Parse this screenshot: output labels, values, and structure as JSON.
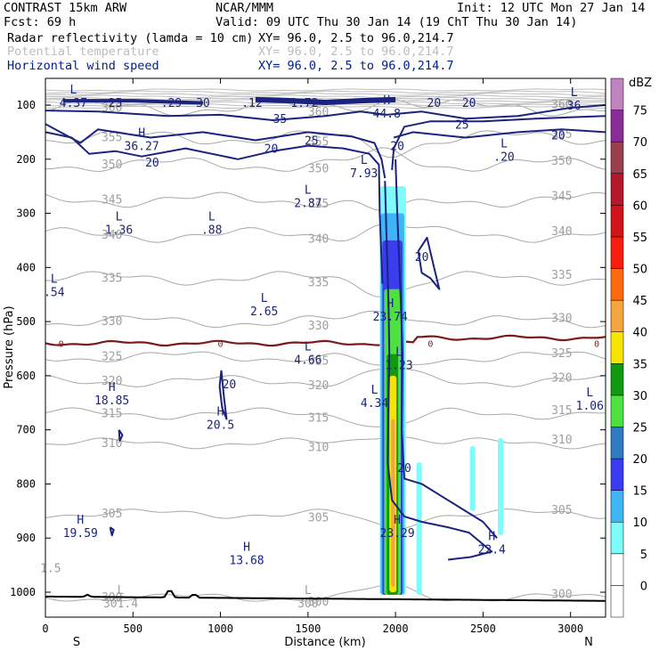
{
  "header": {
    "left_title": "CONTRAST 15km ARW",
    "center_title": "NCAR/MMM",
    "init": "Init: 12 UTC Mon 27 Jan 14",
    "fcst": "Fcst:   69 h",
    "valid": "Valid: 09 UTC Thu 30 Jan 14 (19 ChT Thu 30 Jan 14)",
    "fields": [
      {
        "name": "Radar reflectivity (lamda = 10 cm)",
        "xy": "XY=  96.0,  2.5 to  96.0,214.7",
        "color": "#000000"
      },
      {
        "name": "Potential temperature",
        "xy": "XY=  96.0,  2.5 to  96.0,214.7",
        "color": "#bdbdbd"
      },
      {
        "name": "Horizontal wind speed",
        "xy": "XY=  96.0,  2.5 to  96.0,214.7",
        "color": "#00208a"
      }
    ]
  },
  "chart_data": {
    "type": "cross-section contour",
    "xlabel": "Distance (km)",
    "ylabel": "Pressure (hPa)",
    "xlim": [
      0,
      3200
    ],
    "ylim": [
      1050,
      70
    ],
    "xticks": [
      0,
      500,
      1000,
      1500,
      2000,
      2500,
      3000
    ],
    "yticks": [
      100,
      200,
      300,
      400,
      500,
      600,
      700,
      800,
      900,
      1000
    ],
    "x_end_labels": {
      "left": "S",
      "right": "N"
    },
    "colorbar": {
      "unit": "dBZ",
      "levels": [
        0,
        5,
        10,
        15,
        20,
        25,
        30,
        35,
        40,
        45,
        50,
        55,
        60,
        65,
        70,
        75
      ],
      "colors": [
        "#ffffff",
        "#7efcfb",
        "#3fb5f5",
        "#3b3bf0",
        "#2e7bc1",
        "#4ee03e",
        "#109a10",
        "#f7e400",
        "#f4a53f",
        "#fe6a0f",
        "#f81e0e",
        "#d1131a",
        "#b4162a",
        "#9a3f4e",
        "#8b2a99",
        "#c083c0"
      ]
    },
    "isentropes_K": [
      {
        "value": "300",
        "p": 1010
      },
      {
        "value": "305",
        "p": 855
      },
      {
        "value": "310",
        "p": 725
      },
      {
        "value": "315",
        "p": 670
      },
      {
        "value": "320",
        "p": 610
      },
      {
        "value": "325",
        "p": 565
      },
      {
        "value": "330",
        "p": 500
      },
      {
        "value": "335",
        "p": 420
      },
      {
        "value": "340",
        "p": 340
      },
      {
        "value": "345",
        "p": 275
      },
      {
        "value": "350",
        "p": 210
      },
      {
        "value": "355",
        "p": 160
      },
      {
        "value": "360",
        "p": 105
      }
    ],
    "freezing_level": {
      "label": "0",
      "p": 540
    },
    "extrema_labels": [
      {
        "kind": "H",
        "value": "36.27",
        "x": 550,
        "p": 165,
        "color": "blue"
      },
      {
        "kind": "L",
        "value": "1.36",
        "x": 420,
        "p": 320,
        "color": "blue"
      },
      {
        "kind": "L",
        "value": ".88",
        "x": 950,
        "p": 320,
        "color": "blue"
      },
      {
        "kind": "L",
        "value": "2.87",
        "x": 1500,
        "p": 270,
        "color": "blue"
      },
      {
        "kind": "L",
        "value": "7.93",
        "x": 1820,
        "p": 215,
        "color": "blue"
      },
      {
        "kind": "L",
        "value": "2.65",
        "x": 1250,
        "p": 470,
        "color": "blue"
      },
      {
        "kind": "L",
        "value": "4.66",
        "x": 1500,
        "p": 560,
        "color": "blue"
      },
      {
        "kind": "H",
        "value": "23.74",
        "x": 1970,
        "p": 480,
        "color": "blue"
      },
      {
        "kind": "L",
        "value": "1.23",
        "x": 2020,
        "p": 570,
        "color": "blue"
      },
      {
        "kind": "H",
        "value": "18.85",
        "x": 380,
        "p": 635,
        "color": "blue"
      },
      {
        "kind": "H",
        "value": "20.5",
        "x": 1000,
        "p": 680,
        "color": "blue"
      },
      {
        "kind": "L",
        "value": "4.34",
        "x": 1880,
        "p": 640,
        "color": "blue"
      },
      {
        "kind": "H",
        "value": "19.59",
        "x": 200,
        "p": 880,
        "color": "blue"
      },
      {
        "kind": "H",
        "value": "13.68",
        "x": 1150,
        "p": 930,
        "color": "blue"
      },
      {
        "kind": "H",
        "value": "23.29",
        "x": 2010,
        "p": 880,
        "color": "blue"
      },
      {
        "kind": "H",
        "value": "22.4",
        "x": 2550,
        "p": 910,
        "color": "blue"
      },
      {
        "kind": "L",
        "value": "1.06",
        "x": 3110,
        "p": 645,
        "color": "blue"
      },
      {
        "kind": "L",
        "value": ".54",
        "x": 50,
        "p": 435,
        "color": "blue"
      },
      {
        "kind": "L",
        "value": ".20",
        "x": 2620,
        "p": 185,
        "color": "blue"
      },
      {
        "kind": "H",
        "value": "44.8",
        "x": 1950,
        "p": 105,
        "color": "blue"
      },
      {
        "kind": "L",
        "value": "4.37",
        "x": 160,
        "p": 85,
        "color": "blue"
      },
      {
        "kind": "L",
        "value": "36",
        "x": 3020,
        "p": 90,
        "color": "blue"
      },
      {
        "kind": "",
        "value": "1.72",
        "x": 1480,
        "p": 85,
        "color": "blue"
      },
      {
        "kind": "",
        "value": ".29",
        "x": 720,
        "p": 85,
        "color": "blue"
      },
      {
        "kind": "",
        "value": ".12",
        "x": 1180,
        "p": 85,
        "color": "blue"
      },
      {
        "kind": "L",
        "value": "301.4",
        "x": 430,
        "p": 1010,
        "color": "gray"
      },
      {
        "kind": "L",
        "value": "300",
        "x": 1500,
        "p": 1010,
        "color": "gray"
      },
      {
        "kind": "",
        "value": "1.5",
        "x": 30,
        "p": 945,
        "color": "gray"
      }
    ],
    "wind_contour_labels": [
      {
        "value": "25",
        "x": 400,
        "p": 95
      },
      {
        "value": "30",
        "x": 900,
        "p": 95
      },
      {
        "value": "20",
        "x": 2220,
        "p": 95
      },
      {
        "value": "20",
        "x": 2420,
        "p": 95
      },
      {
        "value": "35",
        "x": 1340,
        "p": 125
      },
      {
        "value": "25",
        "x": 1520,
        "p": 165
      },
      {
        "value": "25",
        "x": 2380,
        "p": 135
      },
      {
        "value": "20",
        "x": 2930,
        "p": 155
      },
      {
        "value": "20",
        "x": 610,
        "p": 205
      },
      {
        "value": "20",
        "x": 1290,
        "p": 180
      },
      {
        "value": "20",
        "x": 2010,
        "p": 175
      },
      {
        "value": "20",
        "x": 2150,
        "p": 380
      },
      {
        "value": "20",
        "x": 1050,
        "p": 615
      },
      {
        "value": "20",
        "x": 2050,
        "p": 770
      }
    ]
  }
}
